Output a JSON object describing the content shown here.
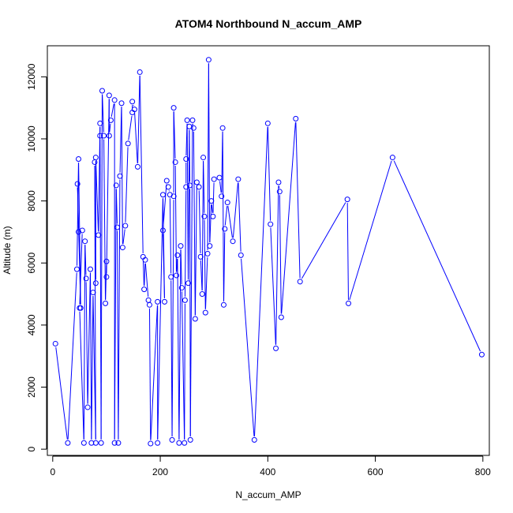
{
  "chart_data": {
    "type": "line",
    "title": "ATOM4 Northbound N_accum_AMP",
    "xlabel": "N_accum_AMP",
    "ylabel": "Altitude (m)",
    "xlim": [
      -10,
      812
    ],
    "ylim": [
      -200,
      13000
    ],
    "x_ticks": [
      0,
      200,
      400,
      600,
      800
    ],
    "y_ticks": [
      0,
      2000,
      4000,
      6000,
      8000,
      10000,
      12000
    ],
    "grid": false,
    "legend": "none",
    "color": "#0000ff",
    "markers": "open-circle",
    "points": [
      [
        5,
        3400
      ],
      [
        28,
        200
      ],
      [
        45,
        5800
      ],
      [
        48,
        9350
      ],
      [
        52,
        4550
      ],
      [
        46,
        8550
      ],
      [
        48,
        7000
      ],
      [
        55,
        7050
      ],
      [
        50,
        4550
      ],
      [
        58,
        200
      ],
      [
        60,
        6700
      ],
      [
        62,
        5500
      ],
      [
        65,
        1350
      ],
      [
        70,
        5800
      ],
      [
        72,
        200
      ],
      [
        75,
        5050
      ],
      [
        80,
        200
      ],
      [
        78,
        9250
      ],
      [
        80,
        5350
      ],
      [
        80,
        9400
      ],
      [
        85,
        6900
      ],
      [
        88,
        10500
      ],
      [
        88,
        10100
      ],
      [
        90,
        200
      ],
      [
        92,
        11550
      ],
      [
        95,
        10100
      ],
      [
        98,
        4700
      ],
      [
        100,
        6050
      ],
      [
        100,
        5550
      ],
      [
        105,
        11400
      ],
      [
        105,
        10100
      ],
      [
        108,
        10600
      ],
      [
        115,
        11250
      ],
      [
        115,
        200
      ],
      [
        118,
        8500
      ],
      [
        120,
        7150
      ],
      [
        122,
        200
      ],
      [
        125,
        8800
      ],
      [
        128,
        11150
      ],
      [
        130,
        6500
      ],
      [
        135,
        7200
      ],
      [
        140,
        9850
      ],
      [
        148,
        10850
      ],
      [
        148,
        11200
      ],
      [
        152,
        10950
      ],
      [
        158,
        9100
      ],
      [
        162,
        12150
      ],
      [
        168,
        6200
      ],
      [
        170,
        5150
      ],
      [
        172,
        6100
      ],
      [
        178,
        4800
      ],
      [
        180,
        4650
      ],
      [
        182,
        180
      ],
      [
        195,
        4750
      ],
      [
        195,
        200
      ],
      [
        205,
        8200
      ],
      [
        208,
        4750
      ],
      [
        205,
        7050
      ],
      [
        212,
        8650
      ],
      [
        215,
        8450
      ],
      [
        218,
        8200
      ],
      [
        220,
        5550
      ],
      [
        222,
        300
      ],
      [
        225,
        8150
      ],
      [
        225,
        11000
      ],
      [
        228,
        9250
      ],
      [
        230,
        5600
      ],
      [
        232,
        6250
      ],
      [
        235,
        200
      ],
      [
        238,
        6550
      ],
      [
        240,
        5200
      ],
      [
        245,
        200
      ],
      [
        246,
        4800
      ],
      [
        248,
        8450
      ],
      [
        248,
        9350
      ],
      [
        250,
        10600
      ],
      [
        252,
        5350
      ],
      [
        254,
        10400
      ],
      [
        255,
        8500
      ],
      [
        256,
        300
      ],
      [
        260,
        10600
      ],
      [
        262,
        10350
      ],
      [
        265,
        4200
      ],
      [
        268,
        8600
      ],
      [
        272,
        8450
      ],
      [
        275,
        6200
      ],
      [
        278,
        5000
      ],
      [
        280,
        9400
      ],
      [
        282,
        7500
      ],
      [
        284,
        4400
      ],
      [
        288,
        6300
      ],
      [
        290,
        12550
      ],
      [
        292,
        6550
      ],
      [
        295,
        8000
      ],
      [
        298,
        7500
      ],
      [
        300,
        8700
      ],
      [
        310,
        8750
      ],
      [
        314,
        8150
      ],
      [
        316,
        10350
      ],
      [
        318,
        4650
      ],
      [
        320,
        7100
      ],
      [
        325,
        7950
      ],
      [
        335,
        6700
      ],
      [
        345,
        8700
      ],
      [
        350,
        6250
      ],
      [
        375,
        300
      ],
      [
        400,
        10500
      ],
      [
        405,
        7250
      ],
      [
        415,
        3250
      ],
      [
        420,
        8600
      ],
      [
        422,
        8300
      ],
      [
        425,
        4250
      ],
      [
        452,
        10650
      ],
      [
        460,
        5400
      ],
      [
        548,
        8050
      ],
      [
        550,
        4700
      ],
      [
        632,
        9400
      ],
      [
        798,
        3050
      ]
    ]
  }
}
